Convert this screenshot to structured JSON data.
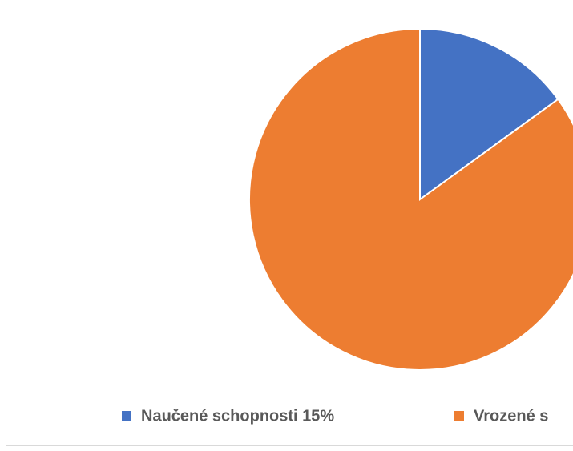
{
  "chart_data": {
    "type": "pie",
    "categories": [
      "Naučené schopnosti 15%",
      "Vrozené s"
    ],
    "values": [
      15,
      85
    ],
    "colors": [
      "#4472c4",
      "#ed7d31"
    ],
    "legend": "bottom"
  }
}
